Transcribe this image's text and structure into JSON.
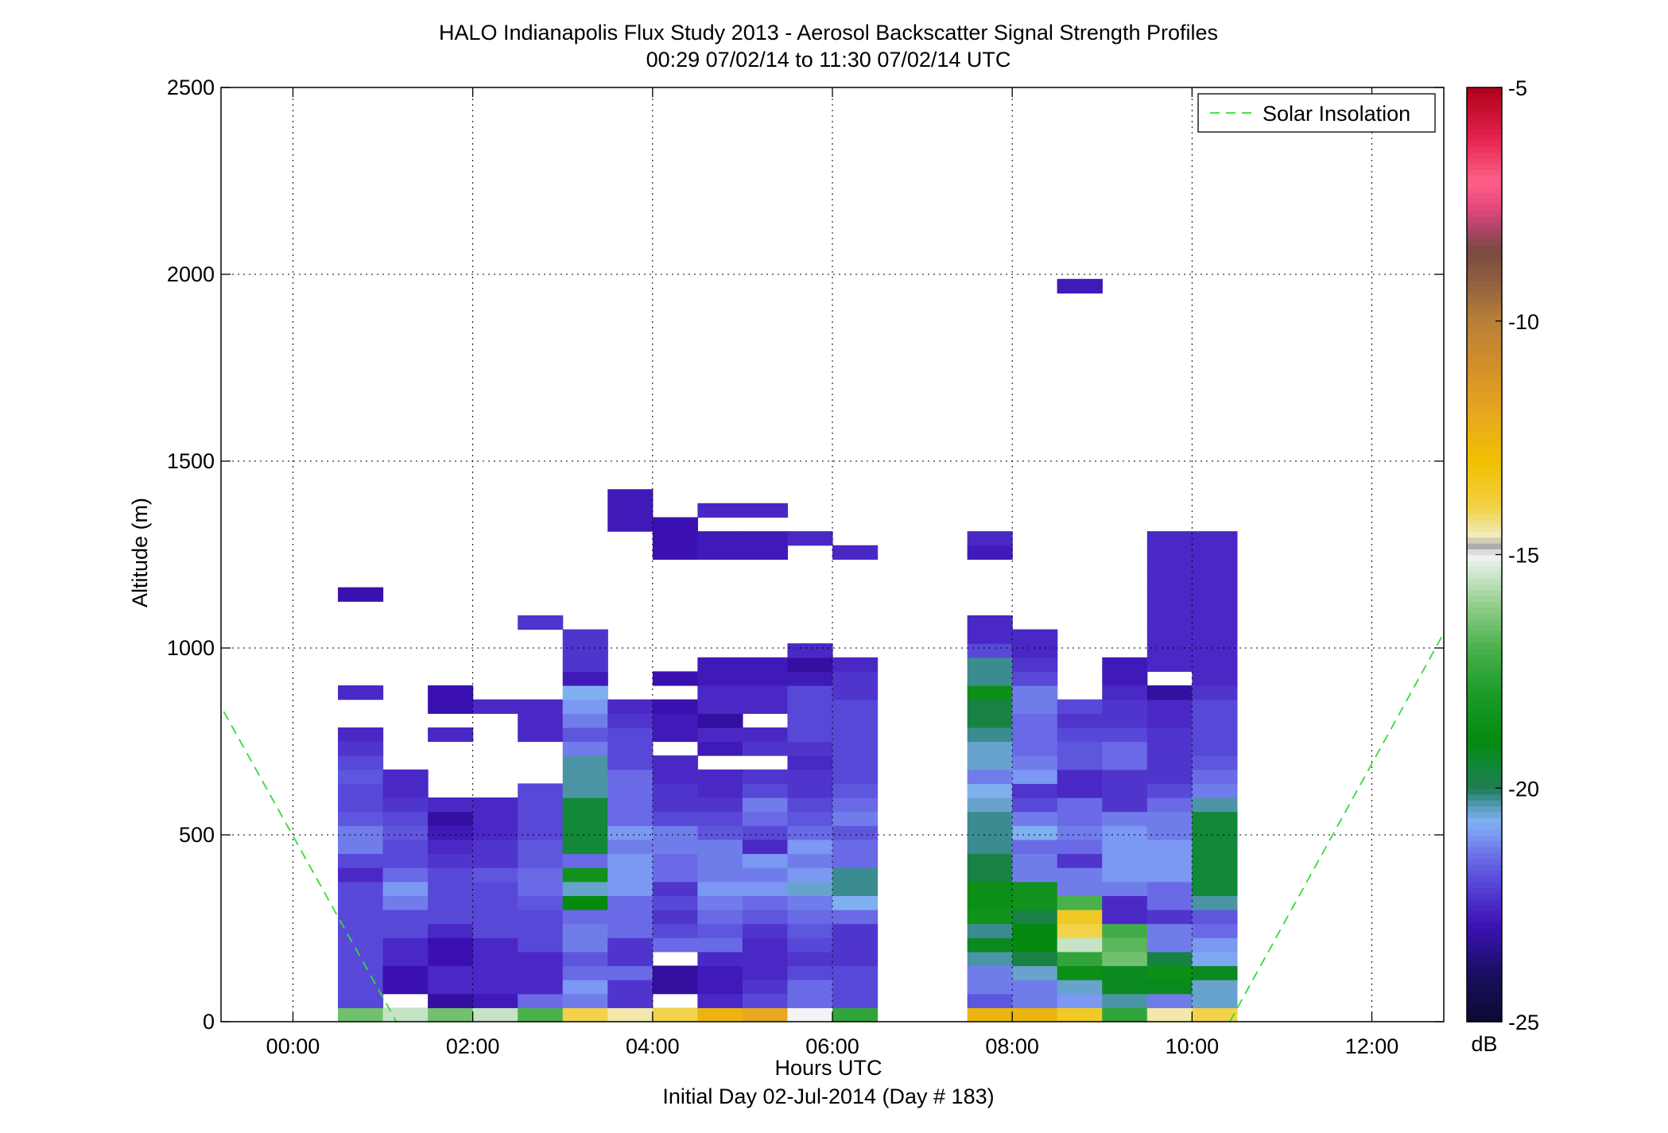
{
  "chart_data": {
    "type": "heatmap",
    "title": "HALO Indianapolis Flux Study 2013 - Aerosol Backscatter Signal Strength Profiles",
    "subtitle": "00:29 07/02/14 to 11:30 07/02/14  UTC",
    "xlabel": "Hours UTC",
    "xlabel2": "Initial Day 02-Jul-2014 (Day # 183)",
    "ylabel": "Altitude (m)",
    "xlim": [
      -0.8,
      12.8
    ],
    "ylim": [
      0,
      2500
    ],
    "grid": true,
    "x_ticks": [
      0,
      2,
      4,
      6,
      8,
      10,
      12
    ],
    "x_tick_labels": [
      "00:00",
      "02:00",
      "04:00",
      "06:00",
      "08:00",
      "10:00",
      "12:00"
    ],
    "y_ticks": [
      0,
      500,
      1000,
      1500,
      2000,
      2500
    ],
    "y_tick_labels": [
      "0",
      "500",
      "1000",
      "1500",
      "2000",
      "2500"
    ],
    "colorbar": {
      "label": "dB",
      "range": [
        -25,
        -5
      ],
      "ticks": [
        -25,
        -20,
        -15,
        -10,
        -5
      ],
      "tick_labels": [
        "-25",
        "-20",
        "-15",
        "-10",
        "-5"
      ]
    },
    "legend": {
      "location": "top-right",
      "entries": [
        {
          "label": "Solar Insolation",
          "color": "#33dd33",
          "style": "dashed"
        }
      ]
    },
    "solar_insolation": [
      {
        "x": [
          -0.77,
          1.15
        ],
        "y": [
          830,
          0
        ]
      },
      {
        "x": [
          10.42,
          12.8
        ],
        "y": [
          0,
          1040
        ]
      }
    ],
    "heatmap": {
      "time_step_hours": 0.5,
      "altitude_step_m": 37.5,
      "columns": [
        {
          "t": 0.5,
          "dB": [
            -16.5,
            -22,
            -22,
            -22,
            -22,
            -22,
            -22,
            -22,
            -22,
            -22,
            -22.5,
            -22,
            -21.3,
            -21.3,
            -21.8,
            -22,
            -22,
            -21.8,
            -22,
            -22.3,
            -22.5
          ],
          "extra": [
            {
              "i": 23,
              "dB": -22.5
            },
            {
              "i": 30,
              "dB": -23
            }
          ]
        },
        {
          "t": 1.0,
          "dB": [
            -15.5,
            null,
            -23,
            -23,
            -22.5,
            -22.5,
            -22,
            -22,
            -21.3,
            -21,
            -21.5,
            -22,
            -22,
            -21.8,
            -22,
            -22.3,
            -22.5,
            -22.5
          ]
        },
        {
          "t": 1.5,
          "dB": [
            -16.5,
            -23.2,
            -22.5,
            -22.5,
            -23,
            -23,
            -22.5,
            -22,
            -22,
            -22,
            -22,
            -22.3,
            -22.5,
            -22.8,
            -23.2,
            -22.5,
            null,
            null,
            null,
            null,
            -22.5,
            null,
            -23,
            -23
          ]
        },
        {
          "t": 2.0,
          "dB": [
            -15.5,
            -22.8,
            -22.5,
            -22.5,
            -22.5,
            -22.5,
            -22,
            -22,
            -22,
            -22,
            -21.8,
            -22.3,
            -22.3,
            -22.5,
            -22.5,
            -22.5,
            null,
            null,
            null,
            null,
            null,
            null,
            -22.5
          ]
        },
        {
          "t": 2.5,
          "dB": [
            -17,
            -21.5,
            -22.5,
            -22.5,
            -22.5,
            -22,
            -22,
            -22,
            -21.8,
            -21.5,
            -21.5,
            -21.8,
            -21.8,
            -22,
            -22,
            -22,
            -22,
            null,
            null,
            null,
            -22.5,
            -22.5,
            -22.5,
            null,
            null,
            null,
            null,
            null,
            -22.3
          ]
        },
        {
          "t": 3.0,
          "dB": [
            -14,
            -21.3,
            -21,
            -21.5,
            -21.8,
            -21.3,
            -21.3,
            -21.5,
            -19,
            -20.5,
            -18.5,
            -21.5,
            -19.5,
            -19.5,
            -19.5,
            -19.5,
            -20.3,
            -20.3,
            -20.3,
            -21.3,
            -21.8,
            -21.3,
            -21,
            -20.7,
            -22.8,
            -22.3,
            -22.3,
            -22.3
          ]
        },
        {
          "t": 3.5,
          "dB": [
            -14.5,
            -22.3,
            -22.3,
            -21.5,
            -22.3,
            -22.3,
            -21.5,
            -21.5,
            -21.5,
            -21,
            -21,
            -21,
            -21.3,
            -21,
            -21.5,
            -21.5,
            -21.5,
            -21.5,
            -22,
            -22,
            -22,
            -22.3,
            -22.5,
            null,
            null,
            null,
            null,
            null,
            null,
            null,
            null,
            null,
            null,
            null,
            null,
            -22.8,
            -22.8,
            -22.8
          ]
        },
        {
          "t": 4.0,
          "dB": [
            -14,
            null,
            -23.2,
            -23.2,
            null,
            -21.5,
            -22,
            -22.3,
            -22,
            -22.3,
            -21.5,
            -21.5,
            -21.3,
            -21.3,
            -22,
            -22.3,
            -22.3,
            -22.5,
            -22.5,
            null,
            -22.8,
            -22.8,
            -23,
            null,
            -23,
            null,
            null,
            null,
            null,
            null,
            null,
            null,
            null,
            -23,
            -23,
            -23
          ]
        },
        {
          "t": 4.5,
          "dB": [
            -12.5,
            -22.5,
            -22.8,
            -22.8,
            -22.5,
            -21.5,
            -21.8,
            -21.5,
            -21.3,
            -21,
            -21.3,
            -21.3,
            -21.3,
            -21.8,
            -22,
            -22.3,
            -22.5,
            -22.5,
            null,
            -22.8,
            -22.5,
            -23.2,
            -22.5,
            -22.5,
            -22.8,
            -22.8,
            null,
            null,
            null,
            null,
            null,
            null,
            null,
            -22.8,
            -22.8,
            null,
            -22.5
          ]
        },
        {
          "t": 5.0,
          "dB": [
            -12,
            -22,
            -22.3,
            -22.5,
            -22.5,
            -22.5,
            -22.3,
            -21.8,
            -21.5,
            -21,
            -21.3,
            -21,
            -22.5,
            -22,
            -21.5,
            -21.3,
            -22,
            -22.3,
            null,
            -22.3,
            -22.5,
            null,
            -22.5,
            -22.5,
            -22.8,
            -22.8,
            null,
            null,
            null,
            null,
            null,
            null,
            null,
            -22.8,
            -22.8,
            null,
            -22.5
          ]
        },
        {
          "t": 5.5,
          "dB": [
            -15,
            -21.5,
            -21.5,
            -22,
            -22.3,
            -22,
            -21.8,
            -21.5,
            -21.3,
            -20.5,
            -21,
            -21.3,
            -21,
            -21.5,
            -21.8,
            -22,
            -22.3,
            -22.3,
            -22.5,
            -22.3,
            -22,
            -22,
            -22,
            -22,
            -22.8,
            -23.2,
            -22.5,
            null,
            null,
            null,
            null,
            null,
            null,
            null,
            -22.5
          ]
        },
        {
          "t": 6.0,
          "dB": [
            -17.5,
            -22,
            -22,
            -22,
            -22.3,
            -22.3,
            -22.3,
            -21.5,
            -20.7,
            -20.2,
            -20.2,
            -21.5,
            -21.5,
            -21.8,
            -21.3,
            -21.5,
            -21.8,
            -22,
            -22,
            -22,
            -22,
            -22,
            -22,
            -22.3,
            -22.3,
            -22.5,
            null,
            null,
            null,
            null,
            null,
            null,
            null,
            -22.5
          ]
        },
        {
          "t": 7.5,
          "dB": [
            -12.5,
            -21.8,
            -21.3,
            -21.3,
            -20.3,
            -19.2,
            -20.2,
            -18.5,
            -18.7,
            -18.7,
            -19.7,
            -19.7,
            -20.2,
            -20.2,
            -20.2,
            -20.5,
            -20.7,
            -21.3,
            -20.5,
            -20.5,
            -20.2,
            -19.7,
            -19.7,
            -18.7,
            -20.2,
            -20.2,
            -22,
            -22.5,
            -22.5,
            null,
            null,
            null,
            null,
            -22.8,
            -22.5
          ]
        },
        {
          "t": 8.0,
          "dB": [
            -12.5,
            -21.3,
            -21.3,
            -20.5,
            -19.7,
            -19,
            -19,
            -19.7,
            -18.5,
            -18.5,
            -21.3,
            -21.3,
            -21.5,
            -20.7,
            -21.3,
            -22,
            -22.3,
            -21,
            -21.3,
            -21.5,
            -21.5,
            -21.5,
            -21.3,
            -21.3,
            -22,
            -22.3,
            -22.5,
            -22.5
          ]
        },
        {
          "t": 8.5,
          "dB": [
            -13.5,
            -21,
            -20.5,
            -18.7,
            -17.5,
            -15.5,
            -14,
            -13.5,
            -17,
            -21.3,
            -21.3,
            -22.3,
            -21.5,
            -21.3,
            -21.5,
            -21.5,
            -22.5,
            -22.5,
            -21.8,
            -21.8,
            -22,
            -22.3,
            -22,
            null,
            null,
            null,
            null,
            null,
            null,
            null,
            null,
            null,
            null,
            null,
            null,
            null,
            null,
            null,
            null,
            null,
            null,
            null,
            null,
            null,
            null,
            null,
            null,
            null,
            null,
            null,
            null,
            null,
            -22.8
          ]
        },
        {
          "t": 9.0,
          "dB": [
            -17.5,
            -20.3,
            -19.2,
            -19.2,
            -16.5,
            -16.8,
            -17.2,
            -22.5,
            -22.5,
            -21.3,
            -21,
            -21,
            -21,
            -21,
            -21.3,
            -22.3,
            -22.3,
            -22.3,
            -21.5,
            -21.5,
            -22,
            -22.3,
            -22.3,
            -22.5,
            -22.8,
            -22.8
          ]
        },
        {
          "t": 9.5,
          "dB": [
            -14.5,
            -21.3,
            -19.2,
            -18.7,
            -19.7,
            -21.3,
            -21.3,
            -22.3,
            -21.5,
            -21.5,
            -21,
            -21,
            -21,
            -21.3,
            -21.3,
            -21.5,
            -22,
            -22.3,
            -22.3,
            -22.3,
            -22.3,
            -22.5,
            -22.5,
            -23.2,
            null,
            -22.5,
            -22.5,
            -22.5,
            -22.5,
            -22.5,
            -22.5,
            -22.5,
            -22.5,
            -22.5,
            -22.5
          ]
        },
        {
          "t": 10.0,
          "dB": [
            -14,
            -20.5,
            -20.5,
            -19.2,
            -20.8,
            -21,
            -21.5,
            -21.8,
            -20.3,
            -19.5,
            -19.5,
            -19.5,
            -19.5,
            -19.5,
            -19.5,
            -20.3,
            -21.3,
            -21.5,
            -21.8,
            -22,
            -22,
            -22,
            -22,
            -22.3,
            -22.5,
            -22.5,
            -22.5,
            -22.5,
            -22.5,
            -22.5,
            -22.5,
            -22.5,
            -22.5,
            -22.5,
            -22.5
          ]
        }
      ]
    }
  }
}
